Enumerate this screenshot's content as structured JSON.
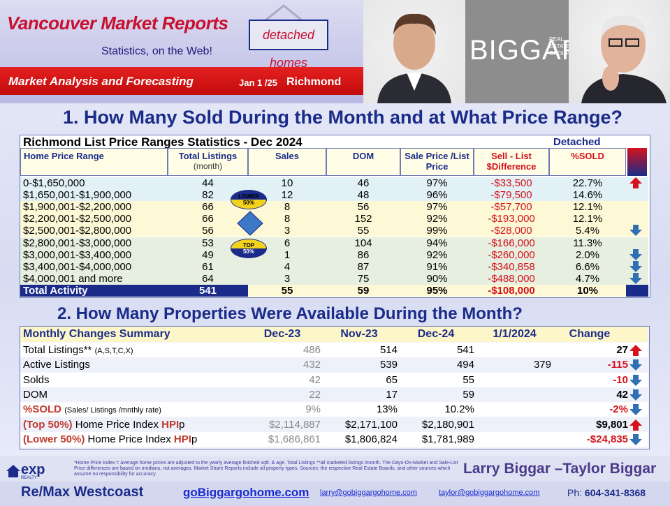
{
  "header": {
    "title": "Vancouver Market Reports",
    "subtitle": "Statistics, on the Web!",
    "badge": "detached homes",
    "analysis": "Market Analysis and Forecasting",
    "date": "Jan 1 /25",
    "city": "Richmond",
    "logo": "BIGGAR",
    "logo_small": "REAL ESTATE GROUP"
  },
  "section1": {
    "heading": "1. How Many Sold During the Month and at What Price Range?"
  },
  "table1": {
    "title": "Richmond List Price Ranges Statistics - Dec  2024",
    "property_type": "Detached",
    "headers": {
      "range": "Home Price Range",
      "total": "Total  Listings",
      "total_sub": "(month)",
      "sales": "Sales",
      "dom": "DOM",
      "ratio": "Sale Price /List Price",
      "diff": "Sell - List $Difference",
      "sold": "%SOLD"
    },
    "rows": [
      {
        "range": "0-$1,650,000",
        "total": "44",
        "sales": "10",
        "dom": "46",
        "ratio": "97%",
        "diff": "-$33,500",
        "sold": "22.7%",
        "trend": "up"
      },
      {
        "range": "$1,650,001-$1,900,000",
        "total": "82",
        "sales": "12",
        "dom": "48",
        "ratio": "96%",
        "diff": "-$79,500",
        "sold": "14.6%",
        "trend": ""
      },
      {
        "range": "$1,900,001-$2,200,000",
        "total": "66",
        "sales": "8",
        "dom": "56",
        "ratio": "97%",
        "diff": "-$57,700",
        "sold": "12.1%",
        "trend": ""
      },
      {
        "range": "$2,200,001-$2,500,000",
        "total": "66",
        "sales": "8",
        "dom": "152",
        "ratio": "92%",
        "diff": "-$193,000",
        "sold": "12.1%",
        "trend": ""
      },
      {
        "range": "$2,500,001-$2,800,000",
        "total": "56",
        "sales": "3",
        "dom": "55",
        "ratio": "99%",
        "diff": "-$28,000",
        "sold": "5.4%",
        "trend": "down"
      },
      {
        "range": "$2,800,001-$3,000,000",
        "total": "53",
        "sales": "6",
        "dom": "104",
        "ratio": "94%",
        "diff": "-$166,000",
        "sold": "11.3%",
        "trend": ""
      },
      {
        "range": "$3,000,001-$3,400,000",
        "total": "49",
        "sales": "1",
        "dom": "86",
        "ratio": "92%",
        "diff": "-$260,000",
        "sold": "2.0%",
        "trend": "down"
      },
      {
        "range": "$3,400,001-$4,000,000",
        "total": "61",
        "sales": "4",
        "dom": "87",
        "ratio": "91%",
        "diff": "-$340,858",
        "sold": "6.6%",
        "trend": "down"
      },
      {
        "range": "$4,000,001 and more",
        "total": "64",
        "sales": "3",
        "dom": "75",
        "ratio": "90%",
        "diff": "-$488,000",
        "sold": "4.7%",
        "trend": "down"
      }
    ],
    "total": {
      "label": "Total Activity",
      "total": "541",
      "sales": "55",
      "dom": "59",
      "ratio": "95%",
      "diff": "-$108,000",
      "sold": "10%"
    },
    "lower_badge": {
      "line1": "LOWER",
      "line2": "50%"
    },
    "top_badge": {
      "line1": "TOP",
      "line2": "50%"
    }
  },
  "section2": {
    "heading": "2. How Many Properties Were Available During the Month?"
  },
  "table2": {
    "headers": {
      "label": "Monthly Changes Summary",
      "c1": "Dec-23",
      "c2": "Nov-23",
      "c3": "Dec-24",
      "c4": "1/1/2024",
      "c5": "Change"
    },
    "rows": [
      {
        "label": "Total Listings**",
        "note": "(A,S,T,C,X)",
        "c1": "486",
        "c2": "514",
        "c3": "541",
        "c4": "",
        "change": "27",
        "trend": "up",
        "change_red": false
      },
      {
        "label": "Active Listings",
        "note": "",
        "c1": "432",
        "c2": "539",
        "c3": "494",
        "c4": "379",
        "change": "-115",
        "trend": "down",
        "change_red": true
      },
      {
        "label": "Solds",
        "note": "",
        "c1": "42",
        "c2": "65",
        "c3": "55",
        "c4": "",
        "change": "-10",
        "trend": "down",
        "change_red": true
      },
      {
        "label": "DOM",
        "note": "",
        "c1": "22",
        "c2": "17",
        "c3": "59",
        "c4": "",
        "change": "42",
        "trend": "down",
        "change_red": false
      },
      {
        "label": "%SOLD",
        "note": "(Sales/ Listings /mnthly rate)",
        "c1": "9%",
        "c2": "13%",
        "c3": "10.2%",
        "c4": "",
        "change": "-2%",
        "trend": "down",
        "change_red": true
      },
      {
        "label": "(Top 50%)",
        "label2": "Home Price Index",
        "label3": "HPI",
        "label4": "p",
        "c1": "$2,114,887",
        "c2": "$2,171,100",
        "c3": "$2,180,901",
        "c4": "",
        "change": "$9,801",
        "trend": "up",
        "change_red": false
      },
      {
        "label": "(Lower 50%)",
        "label2": "Home Price Index",
        "label3": "HPI",
        "label4": "p",
        "c1": "$1,686,861",
        "c2": "$1,806,824",
        "c3": "$1,781,989",
        "c4": "",
        "change": "-$24,835",
        "trend": "down",
        "change_red": true
      }
    ]
  },
  "footer": {
    "note": "*Home Price Index = average home prices are adjusted to the yearly average finished sqft. & age.  Total Listings **all marketed listings /month. The Days-On-Market and Sale-List Price differences are based on medians, not averages. Market Share Reports include all property types. Sources:  the respective Real Estate Boards, and other sources which assume no responsibility for accuracy.",
    "names": "Larry Biggar –Taylor Biggar",
    "office": "Re/Max Westcoast",
    "site": "goBiggargohome.com",
    "email1": "larry@gobiggargohome.com",
    "email2": "taylor@gobiggargohome.com",
    "phone_label": "Ph:",
    "phone": "604-341-8368",
    "exp": "exp",
    "exp_sub": "REALTY"
  },
  "colors": {
    "navy": "#1a2b8a",
    "red": "#d4121b",
    "up": "#d4121b",
    "down": "#2f6fb3"
  }
}
